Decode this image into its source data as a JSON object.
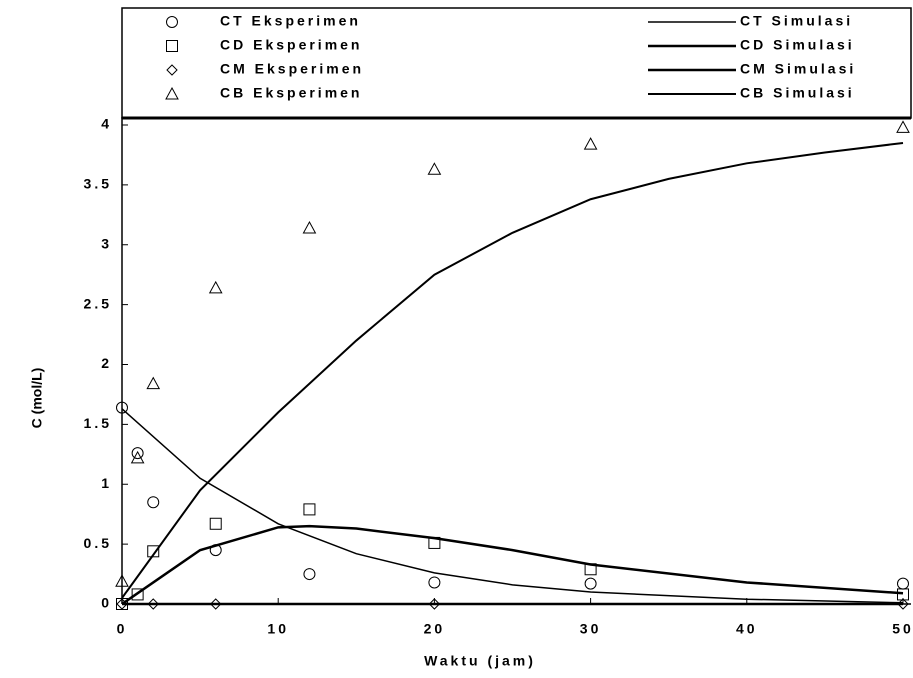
{
  "chart_data": {
    "type": "scatter-line",
    "xlabel": "Waktu (jam)",
    "ylabel": "C (mol/L)",
    "xlim": [
      0,
      50
    ],
    "xticks": [
      0,
      10,
      20,
      30,
      40,
      50
    ],
    "ylim": [
      0,
      4
    ],
    "yticks": [
      0,
      0.5,
      1,
      1.5,
      2,
      2.5,
      3,
      3.5,
      4
    ],
    "series": [
      {
        "name": "CT Eksperimen",
        "color": "#000000",
        "marker": "circle",
        "x": [
          0,
          1,
          2,
          6,
          12,
          20,
          30,
          50
        ],
        "values": [
          1.64,
          1.26,
          0.85,
          0.45,
          0.25,
          0.18,
          0.17,
          0.17
        ]
      },
      {
        "name": "CD Eksperimen",
        "color": "#000000",
        "marker": "square",
        "x": [
          0,
          1,
          2,
          6,
          12,
          20,
          30,
          50
        ],
        "values": [
          0,
          0.08,
          0.44,
          0.67,
          0.79,
          0.51,
          0.29,
          0.08
        ]
      },
      {
        "name": "CM Eksperimen",
        "color": "#000000",
        "marker": "diamond",
        "x": [
          0,
          2,
          6,
          20,
          50
        ],
        "values": [
          0,
          0,
          0,
          0,
          0
        ]
      },
      {
        "name": "CB Eksperimen",
        "color": "#000000",
        "marker": "triangle",
        "x": [
          0,
          1,
          2,
          6,
          12,
          20,
          30,
          50
        ],
        "values": [
          0.19,
          1.22,
          1.84,
          2.64,
          3.14,
          3.63,
          3.84,
          3.98
        ]
      },
      {
        "name": "CT Simulasi",
        "color": "#000000",
        "line_width": 1.5,
        "x": [
          0,
          5,
          10,
          15,
          20,
          25,
          30,
          40,
          50
        ],
        "values": [
          1.63,
          1.05,
          0.67,
          0.42,
          0.26,
          0.16,
          0.1,
          0.04,
          0.01
        ]
      },
      {
        "name": "CD Simulasi",
        "color": "#000000",
        "line_width": 2.5,
        "x": [
          0,
          5,
          10,
          12,
          15,
          20,
          25,
          30,
          40,
          50
        ],
        "values": [
          0,
          0.45,
          0.64,
          0.65,
          0.63,
          0.55,
          0.45,
          0.33,
          0.18,
          0.09
        ]
      },
      {
        "name": "CM Simulasi",
        "color": "#000000",
        "line_width": 2.5,
        "x": [
          0,
          10,
          20,
          30,
          40,
          50
        ],
        "values": [
          0,
          0,
          0,
          0,
          0,
          0
        ]
      },
      {
        "name": "CB Simulasi",
        "color": "#000000",
        "line_width": 2,
        "x": [
          0,
          5,
          10,
          15,
          20,
          25,
          30,
          35,
          40,
          45,
          50
        ],
        "values": [
          0.05,
          0.95,
          1.6,
          2.2,
          2.75,
          3.1,
          3.38,
          3.55,
          3.68,
          3.77,
          3.85
        ]
      }
    ]
  }
}
